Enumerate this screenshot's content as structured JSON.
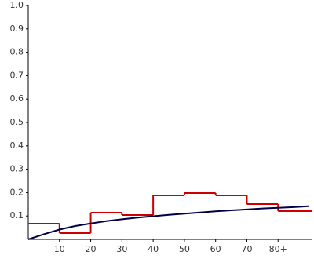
{
  "chart_data": [
    {
      "type": "histogram",
      "bins": [
        0,
        10,
        20,
        30,
        40,
        50,
        60,
        70,
        80,
        91
      ],
      "values": [
        0.067,
        0.027,
        0.114,
        0.104,
        0.188,
        0.198,
        0.188,
        0.151,
        0.121
      ],
      "color": "#cc0000",
      "xlim": [
        0,
        91
      ],
      "ylim": [
        0,
        1
      ],
      "xticks": [
        10,
        20,
        30,
        40,
        50,
        60,
        70,
        {
          "value": 80,
          "label": "80+"
        }
      ],
      "yticks": [
        0.1,
        0.2,
        0.3,
        0.4,
        0.5,
        0.6,
        0.7,
        0.8,
        0.9,
        {
          "value": 1,
          "label": "1.0"
        }
      ]
    },
    {
      "type": "line",
      "x": [
        0,
        5,
        10,
        15,
        20,
        25,
        30,
        35,
        40,
        45,
        50,
        55,
        60,
        65,
        70,
        75,
        80,
        85,
        90
      ],
      "values": [
        0,
        0.022,
        0.042,
        0.057,
        0.068,
        0.078,
        0.086,
        0.093,
        0.099,
        0.105,
        0.11,
        0.115,
        0.12,
        0.124,
        0.128,
        0.132,
        0.135,
        0.138,
        0.142
      ],
      "color": "#000044"
    }
  ]
}
